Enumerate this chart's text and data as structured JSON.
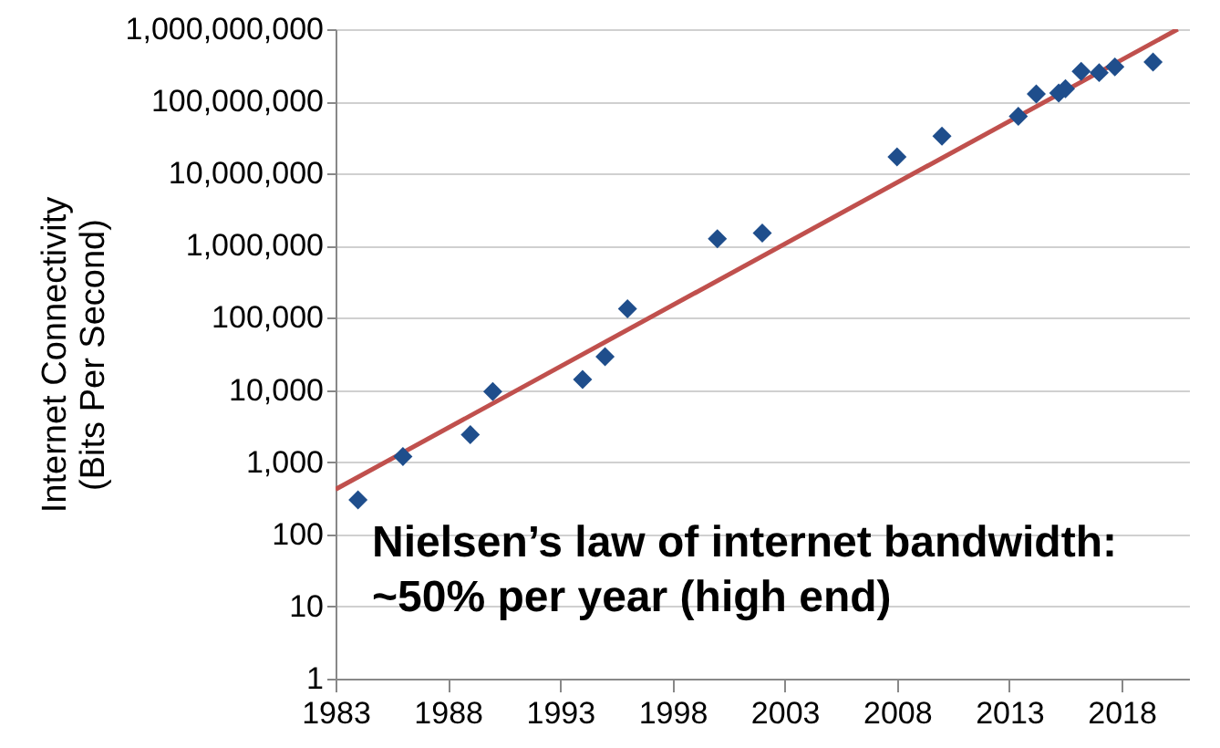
{
  "chart_data": {
    "type": "scatter",
    "ylabel": "Internet Connectivity\n(Bits Per Second)",
    "annotations": [
      "Nielsen’s law of internet bandwidth:\n~50% per year (high end)"
    ],
    "x": [
      1984,
      1986,
      1989,
      1990,
      1994,
      1995,
      1996,
      2000,
      2002,
      2008,
      2010,
      2013.4,
      2014.2,
      2015.2,
      2015.5,
      2016.2,
      2017,
      2017.7,
      2019.4
    ],
    "series": [
      {
        "color": "#1f4e8c",
        "marker": "diamond",
        "values": [
          300,
          1200,
          2400,
          9500,
          14000,
          29000,
          134000,
          1250000,
          1500000,
          17000000,
          33000000,
          62000000,
          127000000,
          130000000,
          150000000,
          260000000,
          250000000,
          300000000,
          350000000
        ]
      },
      {
        "type": "line",
        "color": "#c0504d",
        "x": [
          1983,
          2020.5
        ],
        "values": [
          420,
          1000000000
        ]
      }
    ],
    "xlim": [
      1983,
      2021
    ],
    "xticks": [
      1983,
      1988,
      1993,
      1998,
      2003,
      2008,
      2013,
      2018
    ],
    "ylim": [
      1,
      1000000000
    ],
    "yticks": [
      {
        "value": 1,
        "label": "1"
      },
      {
        "value": 10,
        "label": "10"
      },
      {
        "value": 100,
        "label": "100"
      },
      {
        "value": 1000,
        "label": "1,000"
      },
      {
        "value": 10000,
        "label": "10,000"
      },
      {
        "value": 100000,
        "label": "100,000"
      },
      {
        "value": 1000000,
        "label": "1,000,000"
      },
      {
        "value": 10000000,
        "label": "10,000,000"
      },
      {
        "value": 100000000,
        "label": "100,000,000"
      },
      {
        "value": 1000000000,
        "label": "1,000,000,000"
      }
    ],
    "log": "y",
    "grid": "y"
  }
}
